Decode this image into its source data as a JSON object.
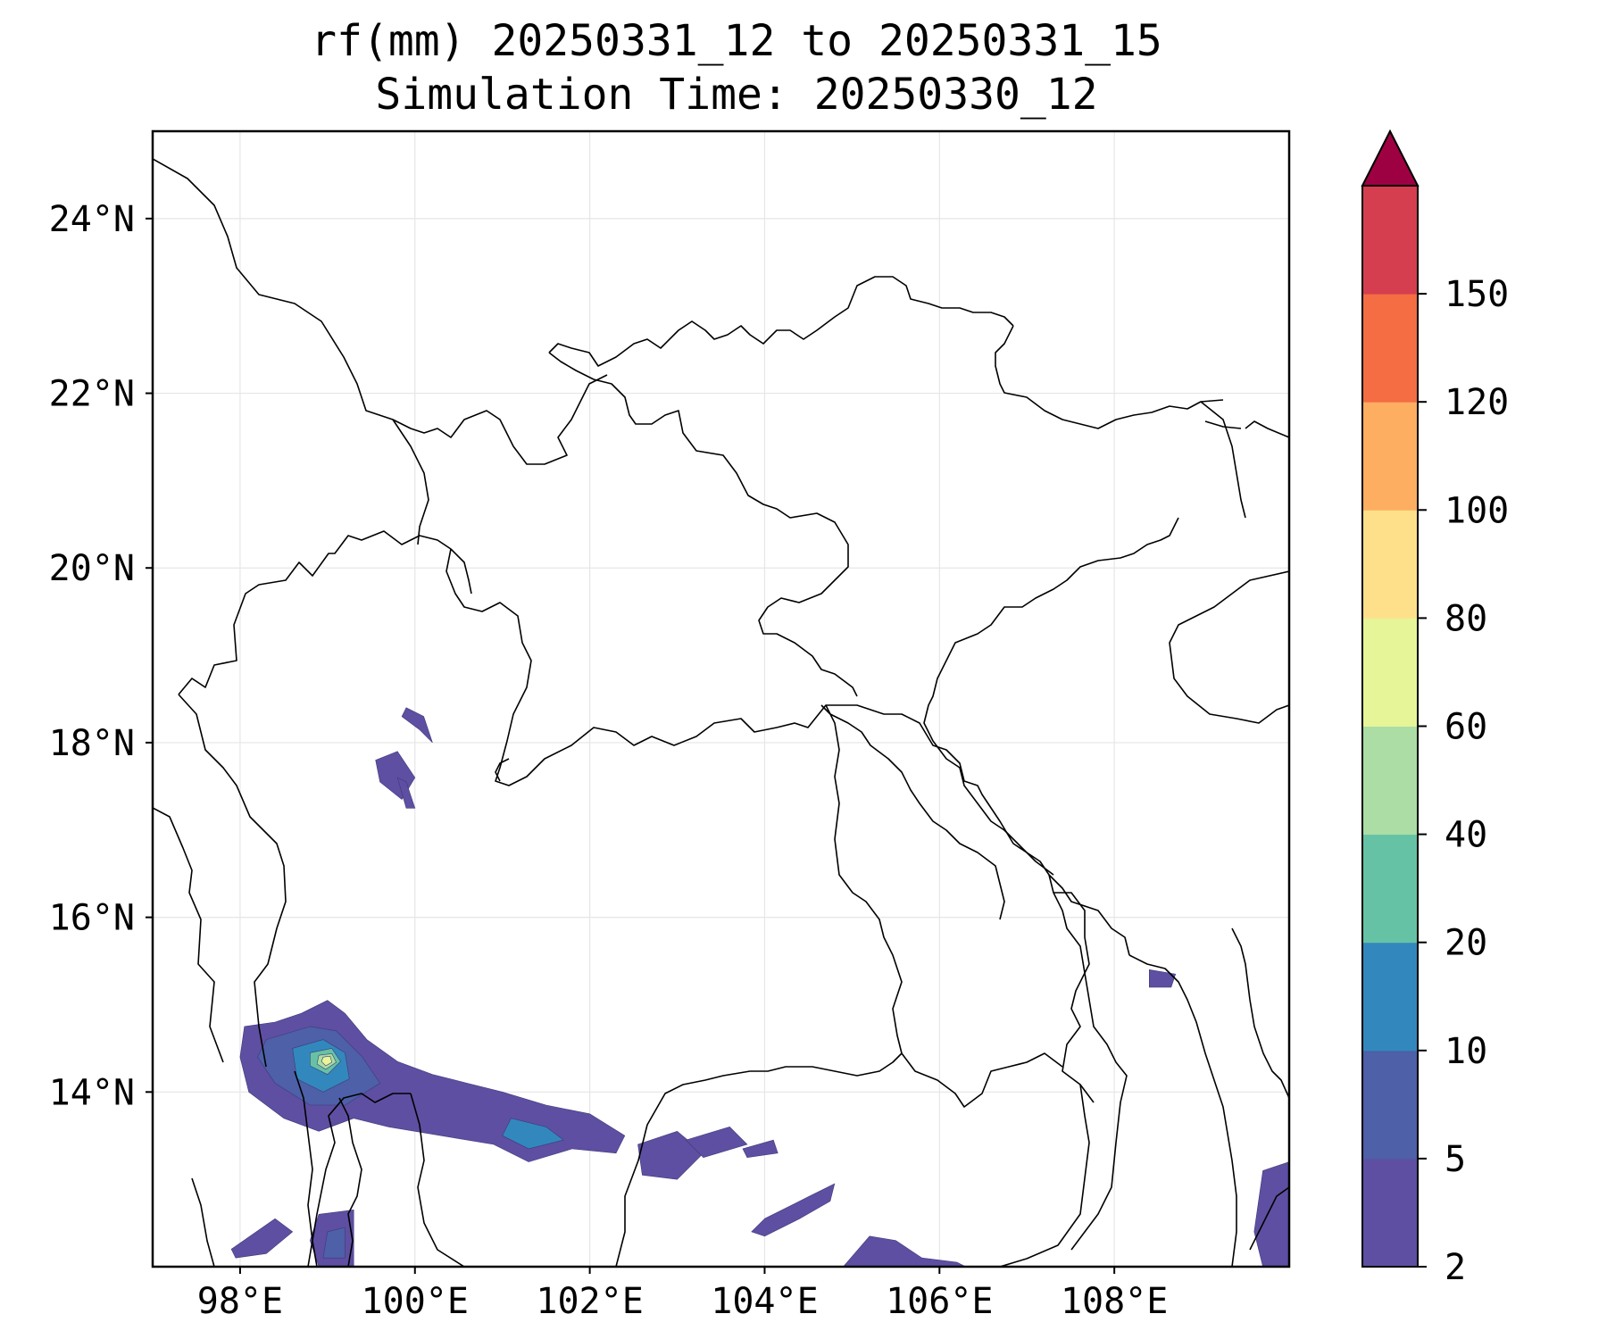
{
  "title": {
    "line1": "rf(mm) 20250331_12 to 20250331_15",
    "line2": "Simulation Time: 20250330_12"
  },
  "map": {
    "lon_range": [
      97.0,
      110.0
    ],
    "lat_range": [
      12.0,
      25.0
    ],
    "lon_ticks": [
      {
        "value": 98,
        "label": "98°E"
      },
      {
        "value": 100,
        "label": "100°E"
      },
      {
        "value": 102,
        "label": "102°E"
      },
      {
        "value": 104,
        "label": "104°E"
      },
      {
        "value": 106,
        "label": "106°E"
      },
      {
        "value": 108,
        "label": "108°E"
      }
    ],
    "lat_ticks": [
      {
        "value": 24,
        "label": "24°N"
      },
      {
        "value": 22,
        "label": "22°N"
      },
      {
        "value": 20,
        "label": "20°N"
      },
      {
        "value": 18,
        "label": "18°N"
      },
      {
        "value": 16,
        "label": "16°N"
      },
      {
        "value": 14,
        "label": "14°N"
      }
    ],
    "gridlines": true,
    "gridline_color": "#e6e6e6",
    "colorbar": {
      "levels": [
        2,
        5,
        10,
        20,
        40,
        60,
        80,
        100,
        120,
        150
      ],
      "tick_labels": [
        "2",
        "5",
        "10",
        "20",
        "40",
        "60",
        "80",
        "100",
        "120",
        "150"
      ],
      "colors": [
        "#5e4fa2",
        "#4d60a8",
        "#3288bd",
        "#66c2a5",
        "#abdda4",
        "#e6f598",
        "#fee08b",
        "#fdae61",
        "#f46d43",
        "#d53e4f"
      ],
      "extend_color": "#9e0142",
      "extend": "max"
    },
    "rain_patches": [
      {
        "level": 0,
        "points": [
          [
            98.05,
            14.75
          ],
          [
            98.4,
            14.8
          ],
          [
            98.7,
            14.9
          ],
          [
            99.0,
            15.05
          ],
          [
            99.2,
            14.9
          ],
          [
            99.45,
            14.6
          ],
          [
            99.8,
            14.35
          ],
          [
            100.2,
            14.2
          ],
          [
            100.6,
            14.1
          ],
          [
            101.0,
            14.0
          ],
          [
            101.5,
            13.85
          ],
          [
            102.0,
            13.75
          ],
          [
            102.4,
            13.5
          ],
          [
            102.3,
            13.3
          ],
          [
            101.8,
            13.35
          ],
          [
            101.3,
            13.2
          ],
          [
            100.9,
            13.4
          ],
          [
            100.3,
            13.5
          ],
          [
            99.7,
            13.6
          ],
          [
            99.3,
            13.7
          ],
          [
            98.9,
            13.55
          ],
          [
            98.5,
            13.7
          ],
          [
            98.1,
            14.0
          ],
          [
            98.0,
            14.4
          ]
        ]
      },
      {
        "level": 1,
        "points": [
          [
            98.3,
            14.6
          ],
          [
            98.8,
            14.75
          ],
          [
            99.1,
            14.7
          ],
          [
            99.4,
            14.4
          ],
          [
            99.6,
            14.1
          ],
          [
            99.2,
            13.85
          ],
          [
            98.8,
            13.85
          ],
          [
            98.4,
            14.1
          ],
          [
            98.2,
            14.4
          ]
        ]
      },
      {
        "level": 2,
        "points": [
          [
            98.6,
            14.5
          ],
          [
            98.95,
            14.6
          ],
          [
            99.2,
            14.45
          ],
          [
            99.25,
            14.15
          ],
          [
            98.95,
            14.0
          ],
          [
            98.65,
            14.15
          ]
        ]
      },
      {
        "level": 3,
        "points": [
          [
            98.8,
            14.45
          ],
          [
            99.05,
            14.5
          ],
          [
            99.15,
            14.35
          ],
          [
            99.0,
            14.2
          ],
          [
            98.8,
            14.3
          ]
        ]
      },
      {
        "level": 4,
        "points": [
          [
            98.9,
            14.42
          ],
          [
            99.05,
            14.44
          ],
          [
            99.1,
            14.34
          ],
          [
            98.98,
            14.26
          ],
          [
            98.88,
            14.32
          ]
        ]
      },
      {
        "level": 5,
        "points": [
          [
            98.95,
            14.4
          ],
          [
            99.03,
            14.41
          ],
          [
            99.05,
            14.34
          ],
          [
            98.98,
            14.3
          ],
          [
            98.93,
            14.35
          ]
        ]
      },
      {
        "level": 2,
        "points": [
          [
            101.1,
            13.7
          ],
          [
            101.5,
            13.6
          ],
          [
            101.7,
            13.45
          ],
          [
            101.3,
            13.35
          ],
          [
            101.0,
            13.5
          ]
        ]
      },
      {
        "level": 0,
        "points": [
          [
            102.55,
            13.4
          ],
          [
            103.0,
            13.55
          ],
          [
            103.3,
            13.3
          ],
          [
            103.0,
            13.0
          ],
          [
            102.6,
            13.05
          ]
        ]
      },
      {
        "level": 0,
        "points": [
          [
            103.1,
            13.45
          ],
          [
            103.6,
            13.6
          ],
          [
            103.8,
            13.4
          ],
          [
            103.3,
            13.25
          ]
        ]
      },
      {
        "level": 0,
        "points": [
          [
            103.75,
            13.35
          ],
          [
            104.1,
            13.45
          ],
          [
            104.15,
            13.3
          ],
          [
            103.8,
            13.25
          ]
        ]
      },
      {
        "level": 0,
        "points": [
          [
            104.0,
            12.55
          ],
          [
            104.5,
            12.8
          ],
          [
            104.8,
            12.95
          ],
          [
            104.75,
            12.75
          ],
          [
            104.4,
            12.55
          ],
          [
            104.0,
            12.35
          ],
          [
            103.85,
            12.4
          ]
        ]
      },
      {
        "level": 0,
        "points": [
          [
            104.9,
            12.0
          ],
          [
            105.2,
            12.35
          ],
          [
            105.5,
            12.3
          ],
          [
            105.8,
            12.1
          ],
          [
            106.2,
            12.05
          ],
          [
            106.3,
            12.0
          ]
        ]
      },
      {
        "level": 0,
        "points": [
          [
            98.9,
            12.6
          ],
          [
            99.3,
            12.65
          ],
          [
            99.3,
            12.0
          ],
          [
            98.9,
            12.0
          ],
          [
            98.8,
            12.3
          ]
        ]
      },
      {
        "level": 1,
        "points": [
          [
            99.0,
            12.4
          ],
          [
            99.2,
            12.45
          ],
          [
            99.2,
            12.1
          ],
          [
            98.95,
            12.1
          ]
        ]
      },
      {
        "level": 0,
        "points": [
          [
            97.9,
            12.2
          ],
          [
            98.4,
            12.55
          ],
          [
            98.6,
            12.4
          ],
          [
            98.3,
            12.15
          ],
          [
            97.95,
            12.1
          ]
        ]
      },
      {
        "level": 0,
        "points": [
          [
            99.55,
            17.8
          ],
          [
            99.8,
            17.9
          ],
          [
            100.0,
            17.6
          ],
          [
            99.85,
            17.35
          ],
          [
            99.6,
            17.55
          ]
        ]
      },
      {
        "level": 0,
        "points": [
          [
            99.8,
            17.6
          ],
          [
            99.9,
            17.55
          ],
          [
            100.0,
            17.25
          ],
          [
            99.9,
            17.25
          ]
        ]
      },
      {
        "level": 0,
        "points": [
          [
            99.9,
            18.4
          ],
          [
            100.1,
            18.3
          ],
          [
            100.2,
            18.0
          ],
          [
            100.05,
            18.15
          ],
          [
            99.85,
            18.3
          ]
        ]
      },
      {
        "level": 0,
        "points": [
          [
            108.4,
            15.4
          ],
          [
            108.7,
            15.35
          ],
          [
            108.65,
            15.2
          ],
          [
            108.4,
            15.2
          ]
        ]
      },
      {
        "level": 0,
        "points": [
          [
            109.7,
            13.1
          ],
          [
            110.0,
            13.2
          ],
          [
            110.0,
            12.0
          ],
          [
            109.7,
            12.0
          ],
          [
            109.6,
            12.4
          ]
        ]
      }
    ]
  }
}
